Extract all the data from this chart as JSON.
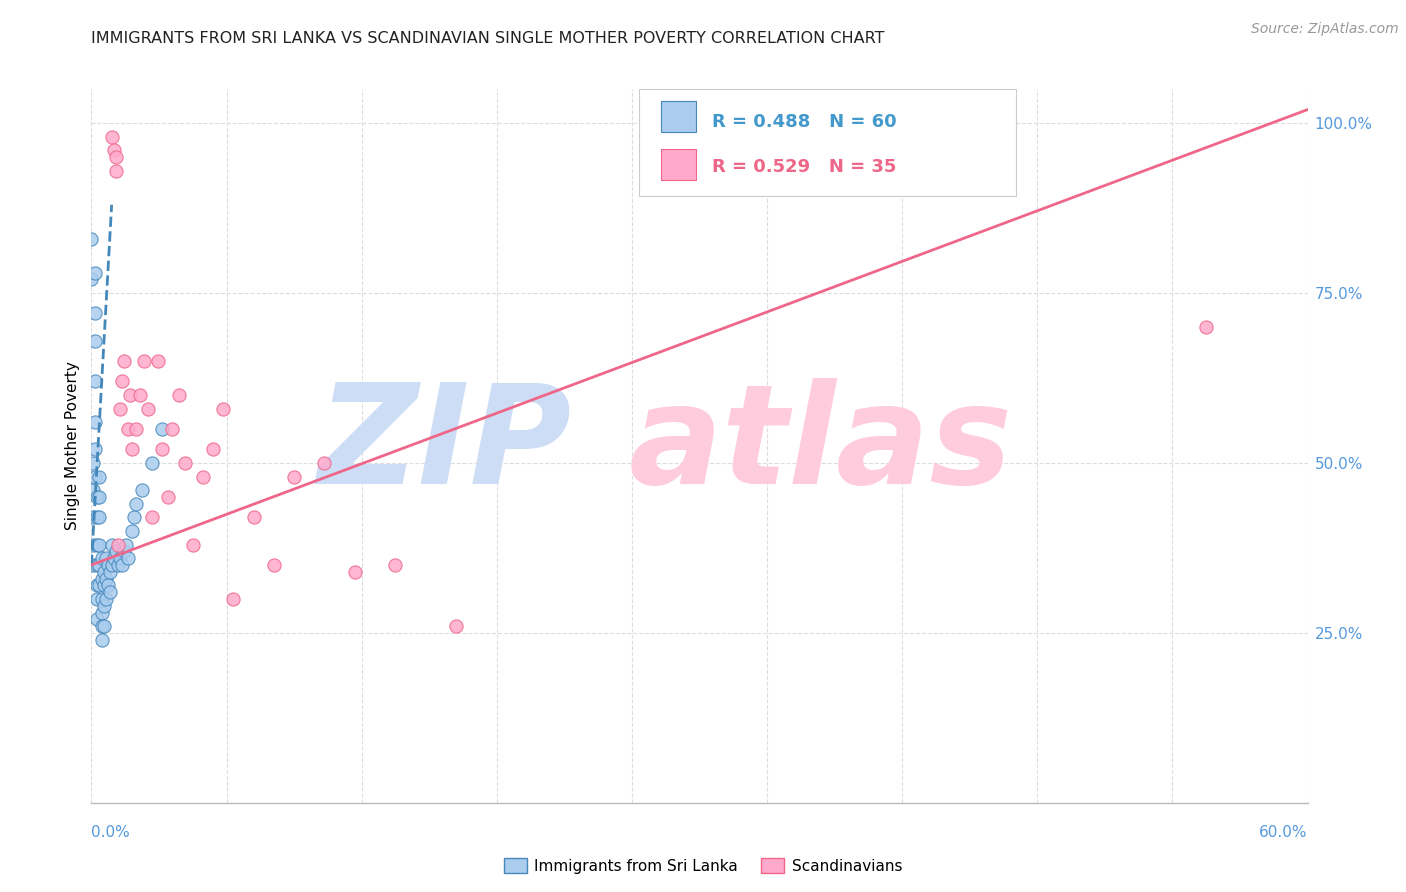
{
  "title": "IMMIGRANTS FROM SRI LANKA VS SCANDINAVIAN SINGLE MOTHER POVERTY CORRELATION CHART",
  "source": "Source: ZipAtlas.com",
  "ylabel": "Single Mother Poverty",
  "legend1_r": "R = 0.488",
  "legend1_n": "N = 60",
  "legend2_r": "R = 0.529",
  "legend2_n": "N = 35",
  "legend_label1": "Immigrants from Sri Lanka",
  "legend_label2": "Scandinavians",
  "color_blue": "#AACCEE",
  "color_pink": "#FFAACC",
  "color_blue_line": "#4488BB",
  "color_pink_line": "#EE6688",
  "color_blue_text": "#4499CC",
  "color_pink_text": "#EE6688",
  "color_axis": "#5599DD",
  "blue_scatter_x": [
    0.0,
    0.0,
    0.001,
    0.001,
    0.001,
    0.001,
    0.001,
    0.002,
    0.002,
    0.002,
    0.002,
    0.002,
    0.002,
    0.002,
    0.003,
    0.003,
    0.003,
    0.003,
    0.003,
    0.003,
    0.003,
    0.004,
    0.004,
    0.004,
    0.004,
    0.004,
    0.004,
    0.005,
    0.005,
    0.005,
    0.005,
    0.005,
    0.005,
    0.006,
    0.006,
    0.006,
    0.006,
    0.007,
    0.007,
    0.007,
    0.008,
    0.008,
    0.009,
    0.009,
    0.01,
    0.01,
    0.011,
    0.012,
    0.013,
    0.014,
    0.015,
    0.016,
    0.017,
    0.018,
    0.02,
    0.021,
    0.022,
    0.025,
    0.03,
    0.035
  ],
  "blue_scatter_y": [
    0.83,
    0.77,
    0.5,
    0.46,
    0.42,
    0.38,
    0.35,
    0.78,
    0.72,
    0.68,
    0.62,
    0.56,
    0.52,
    0.48,
    0.45,
    0.42,
    0.38,
    0.35,
    0.32,
    0.3,
    0.27,
    0.48,
    0.45,
    0.42,
    0.38,
    0.35,
    0.32,
    0.36,
    0.33,
    0.3,
    0.28,
    0.26,
    0.24,
    0.34,
    0.32,
    0.29,
    0.26,
    0.36,
    0.33,
    0.3,
    0.35,
    0.32,
    0.34,
    0.31,
    0.38,
    0.35,
    0.36,
    0.37,
    0.35,
    0.36,
    0.35,
    0.37,
    0.38,
    0.36,
    0.4,
    0.42,
    0.44,
    0.46,
    0.5,
    0.55
  ],
  "pink_scatter_x": [
    0.01,
    0.011,
    0.012,
    0.012,
    0.013,
    0.014,
    0.015,
    0.016,
    0.018,
    0.019,
    0.02,
    0.022,
    0.024,
    0.026,
    0.028,
    0.03,
    0.033,
    0.035,
    0.038,
    0.04,
    0.043,
    0.046,
    0.05,
    0.055,
    0.06,
    0.065,
    0.07,
    0.08,
    0.09,
    0.1,
    0.115,
    0.13,
    0.15,
    0.18,
    0.55
  ],
  "pink_scatter_y": [
    0.98,
    0.96,
    0.95,
    0.93,
    0.38,
    0.58,
    0.62,
    0.65,
    0.55,
    0.6,
    0.52,
    0.55,
    0.6,
    0.65,
    0.58,
    0.42,
    0.65,
    0.52,
    0.45,
    0.55,
    0.6,
    0.5,
    0.38,
    0.48,
    0.52,
    0.58,
    0.3,
    0.42,
    0.35,
    0.48,
    0.5,
    0.34,
    0.35,
    0.26,
    0.7
  ],
  "blue_trend_x": [
    0.0,
    0.01
  ],
  "blue_trend_y": [
    0.35,
    0.88
  ],
  "pink_trend_x": [
    0.0,
    0.6
  ],
  "pink_trend_y": [
    0.35,
    1.02
  ],
  "xlim": [
    0.0,
    0.6
  ],
  "ylim": [
    0.0,
    1.05
  ],
  "right_yticks": [
    0.25,
    0.5,
    0.75,
    1.0
  ],
  "right_yticklabels": [
    "25.0%",
    "50.0%",
    "75.0%",
    "100.0%"
  ],
  "xtick_label_left": "0.0%",
  "xtick_label_right": "60.0%",
  "title_fontsize": 11.5,
  "source_color": "#999999"
}
